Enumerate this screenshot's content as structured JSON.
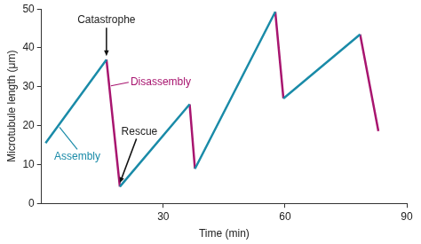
{
  "chart_data": {
    "type": "line",
    "x_label": "Time (min)",
    "y_label": "Microtubule length (μm)",
    "xlim": [
      0,
      90
    ],
    "xticks": [
      30,
      60,
      90
    ],
    "ylim": [
      0,
      50
    ],
    "yticks": [
      0,
      10,
      20,
      30,
      40,
      50
    ],
    "grid": false,
    "series": [
      {
        "name": "Assembly",
        "color": "#1a8ba8",
        "x": [
          1,
          16,
          null,
          19.3,
          36.5,
          null,
          37.8,
          57.6,
          null,
          59.6,
          78.5
        ],
        "values": [
          15.5,
          37,
          null,
          4.3,
          25.5,
          null,
          8.9,
          49.3,
          null,
          27,
          43.5
        ]
      },
      {
        "name": "Disassembly",
        "color": "#a8156f",
        "x": [
          16,
          19.3,
          null,
          36.5,
          37.8,
          null,
          57.6,
          59.6,
          null,
          78.5,
          83
        ],
        "values": [
          37,
          4.3,
          null,
          25.5,
          8.9,
          null,
          49.3,
          27,
          null,
          43.5,
          18.6
        ]
      }
    ],
    "annotations": [
      {
        "text": "Catastrophe",
        "x": 16,
        "y": 37
      },
      {
        "text": "Rescue",
        "x": 19.3,
        "y": 4.3
      }
    ]
  }
}
